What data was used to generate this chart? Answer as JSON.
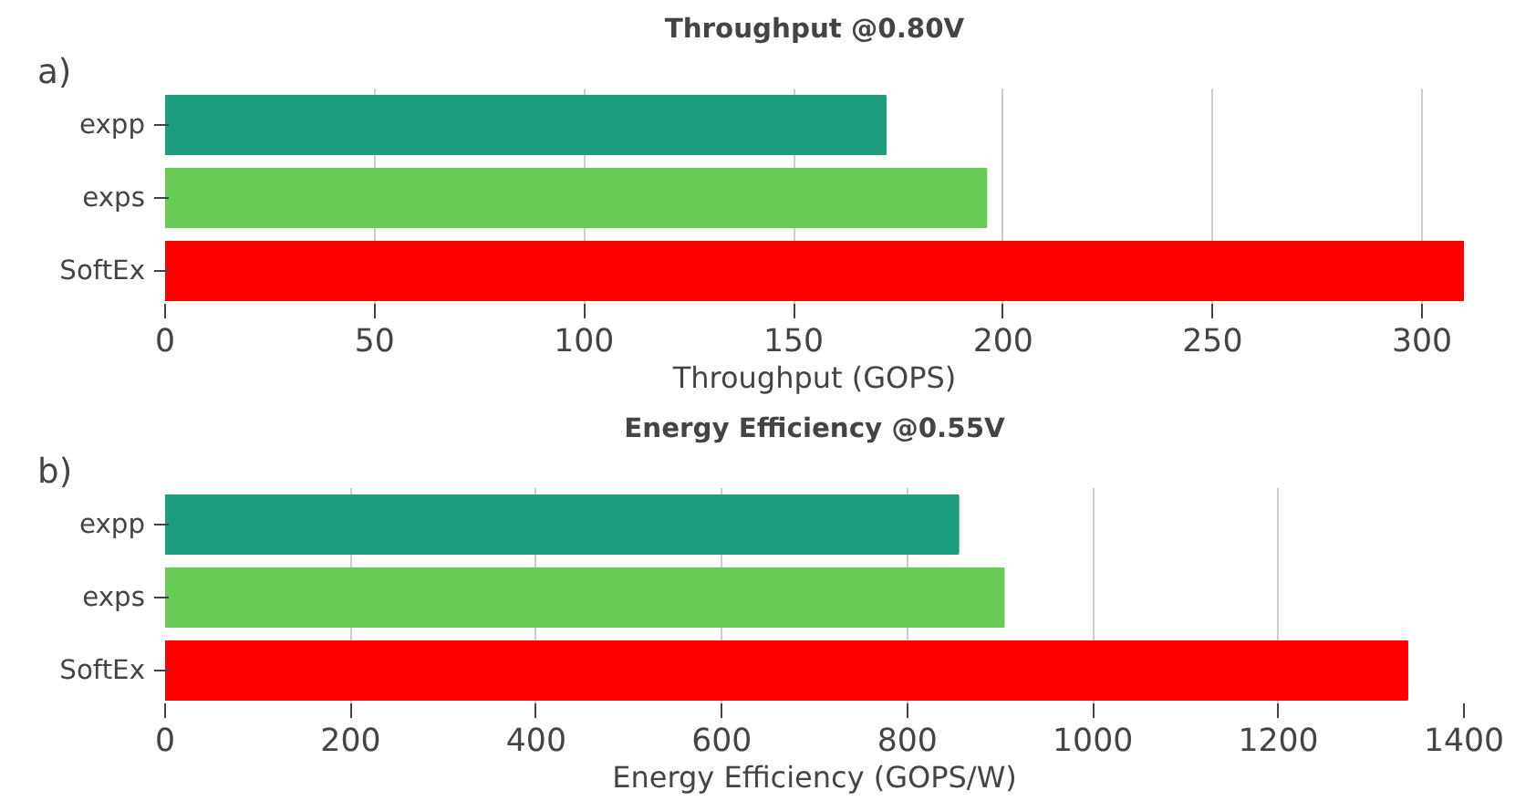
{
  "chart_data": [
    {
      "type": "bar",
      "orientation": "horizontal",
      "title": "Throughput @0.80V",
      "xlabel": "Throughput (GOPS)",
      "annotations": [
        "a)"
      ],
      "categories": [
        "expp",
        "exps",
        "SoftEx"
      ],
      "values": [
        172,
        196,
        310
      ],
      "colors": [
        "#1f9e7f",
        "#66cc55",
        "#ff0000"
      ],
      "xlim": [
        0,
        310
      ],
      "xticks": [
        0,
        50,
        100,
        150,
        200,
        250,
        300
      ],
      "grid": "x"
    },
    {
      "type": "bar",
      "orientation": "horizontal",
      "title": "Energy Efficiency @0.55V",
      "xlabel": "Energy Efficiency (GOPS/W)",
      "annotations": [
        "b)"
      ],
      "categories": [
        "expp",
        "exps",
        "SoftEx"
      ],
      "values": [
        855,
        904,
        1339
      ],
      "colors": [
        "#1f9e7f",
        "#66cc55",
        "#ff0000"
      ],
      "xlim": [
        0,
        1400
      ],
      "xticks": [
        0,
        200,
        400,
        600,
        800,
        1000,
        1200,
        1400
      ],
      "grid": "x"
    }
  ]
}
